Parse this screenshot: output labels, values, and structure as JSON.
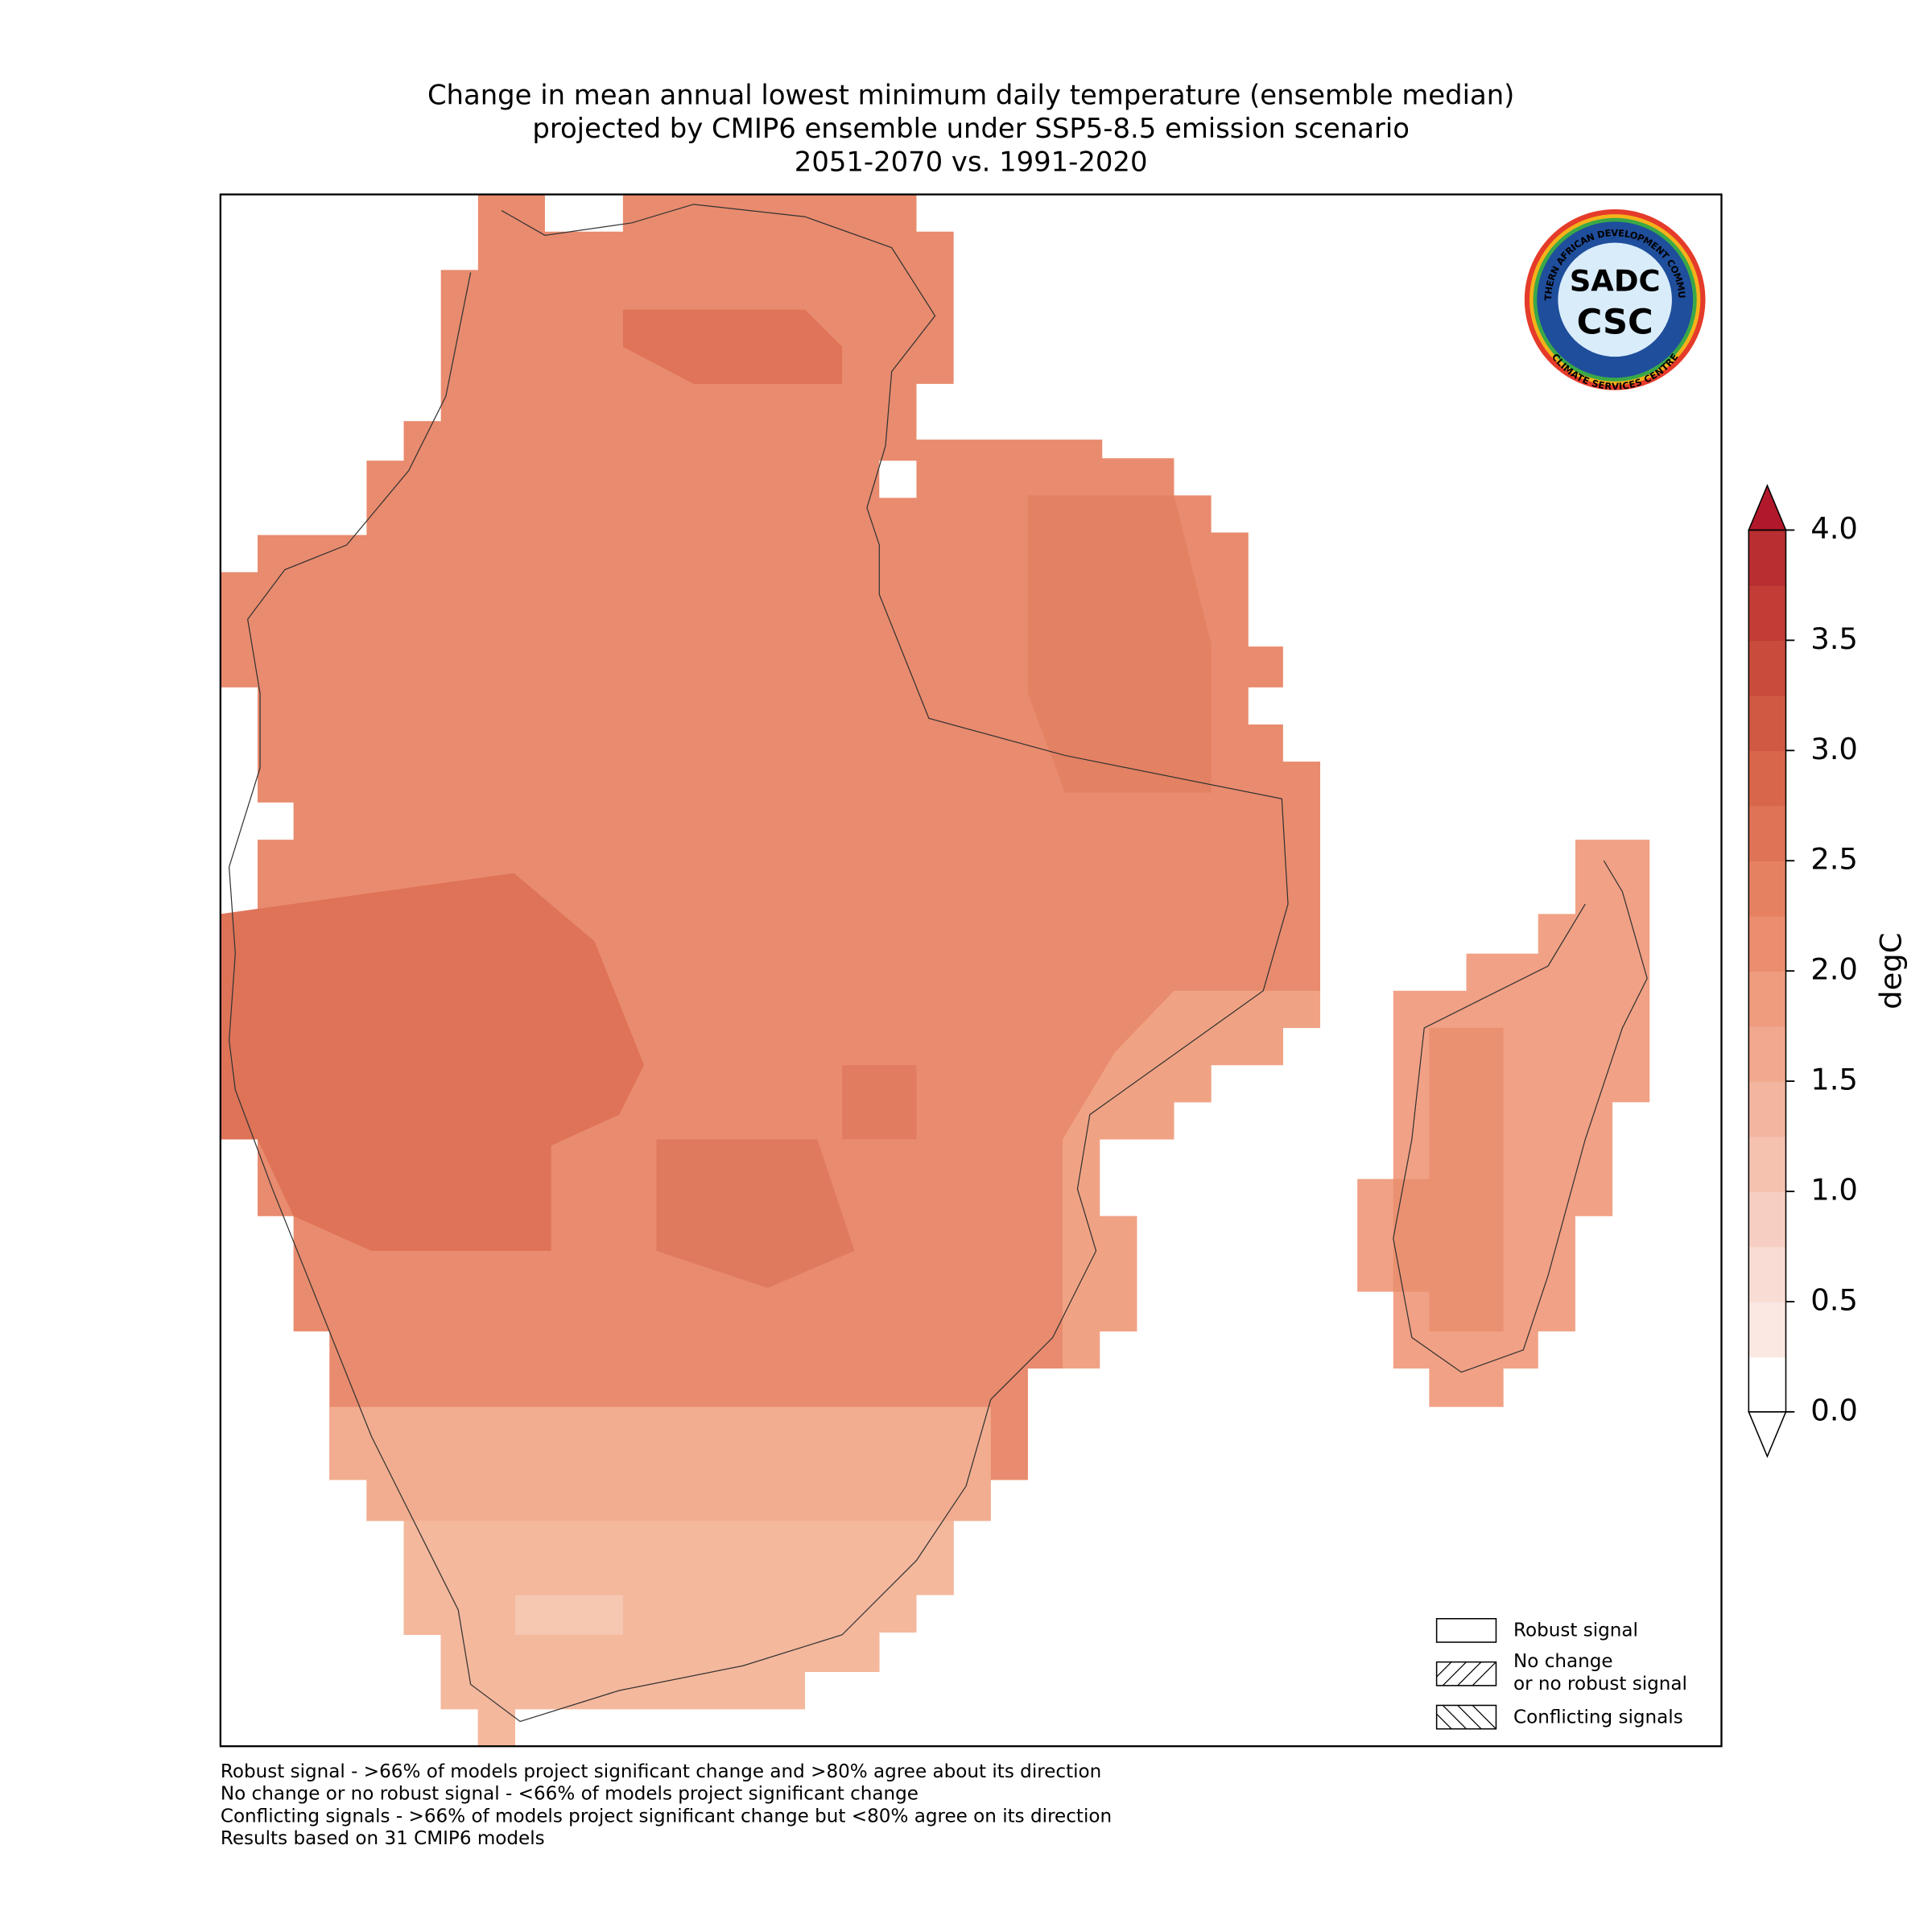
{
  "title": [
    "Change in mean annual lowest minimum daily temperature (ensemble median)",
    "projected by CMIP6 ensemble under SSP5-8.5 emission scenario",
    "2051-2070 vs. 1991-2020"
  ],
  "colorbar": {
    "label": "degC",
    "lim": [
      0,
      4
    ],
    "ticks": [
      {
        "value": 0,
        "label": "0.0"
      },
      {
        "value": 0.5,
        "label": "0.5"
      },
      {
        "value": 1,
        "label": "1.0"
      },
      {
        "value": 1.5,
        "label": "1.5"
      },
      {
        "value": 2,
        "label": "2.0"
      },
      {
        "value": 2.5,
        "label": "2.5"
      },
      {
        "value": 3,
        "label": "3.0"
      },
      {
        "value": 3.5,
        "label": "3.5"
      },
      {
        "value": 4,
        "label": "4.0"
      }
    ],
    "colors": [
      "#ffffff",
      "#fbe8e3",
      "#f9dcd3",
      "#f7cfc2",
      "#f5c2b0",
      "#f3b59f",
      "#f1a88e",
      "#ee9b7e",
      "#ea8e6f",
      "#e58161",
      "#de7355",
      "#d8664b",
      "#d05942",
      "#c84b3b",
      "#c13d36",
      "#b82e31"
    ],
    "over_color": "#b2182b",
    "under_color": "#ffffff"
  },
  "legend": [
    "Robust signal",
    [
      "No change",
      "or no robust signal"
    ],
    "Conflicting signals"
  ],
  "footnotes": [
    "Robust signal - >66% of models project significant change and >80% agree about its direction",
    "No change or no robust signal - <66% of models project significant change",
    "Conflicting signals - >66% of models project significant change but <80% agree on its direction",
    "Results based on 31 CMIP6 models"
  ],
  "logo": {
    "mark": "SADC",
    "sub": "CSC",
    "top": "SOUTHERN AFRICAN DEVELOPMENT COMMUNITY",
    "bottom": "CLIMATE SERVICES CENTRE"
  }
}
